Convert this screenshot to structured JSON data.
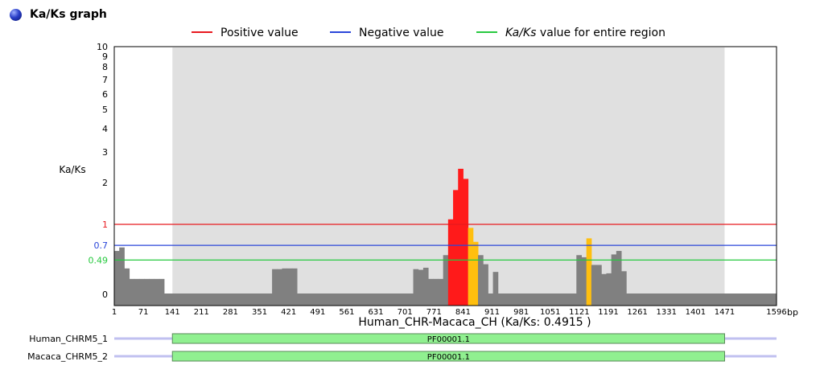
{
  "section": {
    "title": "Ka/Ks graph"
  },
  "colors": {
    "positive": "#e8191f",
    "negative": "#2a46d9",
    "entire": "#27c93f",
    "bar_default": "#808080",
    "bar_high": "#ff1a1a",
    "bar_mid": "#ffbf0f",
    "shade": "#e0e0e0",
    "domain_fill": "#90f090",
    "track": "#c0c0f0"
  },
  "legend": [
    {
      "key": "positive",
      "label_plain": "Positive value",
      "label_italic": ""
    },
    {
      "key": "negative",
      "label_plain": "Negative value",
      "label_italic": ""
    },
    {
      "key": "entire",
      "label_italic": "Ka/Ks",
      "label_plain": " value for entire region"
    }
  ],
  "chart_data": {
    "type": "bar",
    "title": "",
    "ylabel": "Ka/Ks",
    "xlabel": "Human_CHR-Macaca_CH (Ka/Ks: 0.4915 )",
    "x_unit": "bp",
    "x_range": [
      1,
      1596
    ],
    "ylim": [
      0,
      10
    ],
    "y_ticks": [
      {
        "label": "0",
        "value": 0.0
      },
      {
        "label": "1",
        "value": 1.0
      },
      {
        "label": "2",
        "value": 2.0
      },
      {
        "label": "3",
        "value": 3.0
      },
      {
        "label": "4",
        "value": 4.0
      },
      {
        "label": "5",
        "value": 5.0
      },
      {
        "label": "6",
        "value": 6.0
      },
      {
        "label": "7",
        "value": 7.0
      },
      {
        "label": "8",
        "value": 8.0
      },
      {
        "label": "9",
        "value": 9.0
      },
      {
        "label": "10",
        "value": 10.0
      }
    ],
    "x_ticks": [
      "1",
      "71",
      "141",
      "211",
      "281",
      "351",
      "421",
      "491",
      "561",
      "631",
      "701",
      "771",
      "841",
      "911",
      "981",
      "1051",
      "1121",
      "1191",
      "1261",
      "1331",
      "1401",
      "1471",
      "1596"
    ],
    "reference_lines": [
      {
        "key": "positive",
        "value": 1.0,
        "label": "1"
      },
      {
        "key": "negative",
        "value": 0.7,
        "label": "0.7"
      },
      {
        "key": "entire",
        "value": 0.49,
        "label": "0.49"
      }
    ],
    "shaded_region": {
      "start": 141,
      "end": 1471
    },
    "window_size": 12,
    "series": [
      {
        "values": [
          0.01,
          0.01,
          0.62,
          0.62,
          0.67,
          0.67,
          0.37,
          0.37,
          0.22,
          0.22,
          0.22,
          0.22,
          0.22,
          0.22,
          0.22,
          0.22,
          0.01,
          0.01,
          0.01,
          0.01,
          0.01,
          0.01,
          0.01,
          0.01,
          0.01,
          0.01,
          0.01,
          0.01,
          0.01,
          0.01,
          0.01,
          0.01,
          0.01,
          0.01,
          0.01,
          0.01,
          0.01,
          0.01,
          0.01,
          0.01,
          0.01,
          0.01,
          0.01,
          0.01,
          0.01,
          0.01,
          0.01,
          0.01,
          0.01,
          0.01,
          0.01,
          0.01,
          0.01,
          0.01,
          0.01,
          0.01,
          0.01,
          0.01,
          0.01,
          0.01,
          0.01,
          0.01,
          0.01,
          0.01,
          0.01,
          0.01,
          0.01,
          0.01,
          0.01,
          0.01,
          0.01,
          0.01,
          0.01,
          0.01,
          0.01,
          0.01,
          0.01,
          0.01,
          0.01,
          0.01,
          0.01,
          0.01,
          0.01,
          0.01,
          0.01,
          0.01,
          0.01,
          0.01,
          0.01,
          0.01,
          0.01,
          0.01,
          0.01,
          0.01,
          0.01,
          0.01,
          0.01,
          0.01,
          0.01,
          0.01,
          0.01,
          0.01,
          0.01,
          0.01,
          0.01,
          0.01,
          0.01,
          0.01,
          0.01,
          0.01,
          0.01,
          0.01,
          0.01,
          0.01,
          0.01,
          0.01,
          0.01,
          0.01,
          0.01,
          0.01,
          0.01,
          0.01,
          0.01,
          0.01,
          0.01,
          0.01,
          0.01,
          0.01,
          0.01,
          0.01,
          0.01,
          0.01,
          0.01,
          0.01,
          0.01,
          0.01,
          0.01,
          0.01,
          0.01,
          0.01,
          0.01,
          0.01,
          0.01,
          0.01,
          0.01,
          0.01,
          0.01,
          0.01,
          0.01,
          0.01,
          0.01,
          0.01,
          0.01,
          0.01,
          0.01,
          0.01,
          0.01,
          0.01,
          0.01,
          0.01
        ]
      }
    ],
    "bars": [
      {
        "start": 1,
        "end": 13,
        "value": 0.62,
        "tone": "default"
      },
      {
        "start": 13,
        "end": 25,
        "value": 0.67,
        "tone": "default"
      },
      {
        "start": 25,
        "end": 37,
        "value": 0.37,
        "tone": "default"
      },
      {
        "start": 37,
        "end": 49,
        "value": 0.22,
        "tone": "default"
      },
      {
        "start": 49,
        "end": 61,
        "value": 0.22,
        "tone": "default"
      },
      {
        "start": 61,
        "end": 73,
        "value": 0.22,
        "tone": "default"
      },
      {
        "start": 73,
        "end": 85,
        "value": 0.22,
        "tone": "default"
      },
      {
        "start": 85,
        "end": 97,
        "value": 0.22,
        "tone": "default"
      },
      {
        "start": 97,
        "end": 109,
        "value": 0.22,
        "tone": "default"
      },
      {
        "start": 109,
        "end": 121,
        "value": 0.22,
        "tone": "default"
      },
      {
        "start": 121,
        "end": 133,
        "value": 0.01,
        "tone": "default"
      },
      {
        "start": 133,
        "end": 145,
        "value": 0.01,
        "tone": "default"
      },
      {
        "start": 145,
        "end": 381,
        "value": 0.01,
        "tone": "default"
      },
      {
        "start": 381,
        "end": 393,
        "value": 0.36,
        "tone": "default"
      },
      {
        "start": 393,
        "end": 405,
        "value": 0.36,
        "tone": "default"
      },
      {
        "start": 405,
        "end": 417,
        "value": 0.37,
        "tone": "default"
      },
      {
        "start": 417,
        "end": 429,
        "value": 0.37,
        "tone": "default"
      },
      {
        "start": 429,
        "end": 441,
        "value": 0.37,
        "tone": "default"
      },
      {
        "start": 441,
        "end": 721,
        "value": 0.01,
        "tone": "default"
      },
      {
        "start": 721,
        "end": 733,
        "value": 0.36,
        "tone": "default"
      },
      {
        "start": 733,
        "end": 745,
        "value": 0.35,
        "tone": "default"
      },
      {
        "start": 745,
        "end": 757,
        "value": 0.38,
        "tone": "default"
      },
      {
        "start": 757,
        "end": 769,
        "value": 0.22,
        "tone": "default"
      },
      {
        "start": 769,
        "end": 781,
        "value": 0.22,
        "tone": "default"
      },
      {
        "start": 781,
        "end": 793,
        "value": 0.22,
        "tone": "default"
      },
      {
        "start": 793,
        "end": 805,
        "value": 0.56,
        "tone": "default"
      },
      {
        "start": 805,
        "end": 817,
        "value": 1.12,
        "tone": "high"
      },
      {
        "start": 817,
        "end": 829,
        "value": 1.82,
        "tone": "high"
      },
      {
        "start": 829,
        "end": 841,
        "value": 2.45,
        "tone": "high"
      },
      {
        "start": 841,
        "end": 853,
        "value": 2.12,
        "tone": "high"
      },
      {
        "start": 853,
        "end": 865,
        "value": 0.95,
        "tone": "mid"
      },
      {
        "start": 865,
        "end": 877,
        "value": 0.75,
        "tone": "mid"
      },
      {
        "start": 877,
        "end": 889,
        "value": 0.56,
        "tone": "default"
      },
      {
        "start": 889,
        "end": 901,
        "value": 0.43,
        "tone": "default"
      },
      {
        "start": 901,
        "end": 913,
        "value": 0.01,
        "tone": "default"
      },
      {
        "start": 913,
        "end": 925,
        "value": 0.32,
        "tone": "default"
      },
      {
        "start": 925,
        "end": 1114,
        "value": 0.01,
        "tone": "default"
      },
      {
        "start": 1114,
        "end": 1126,
        "value": 0.56,
        "tone": "default"
      },
      {
        "start": 1126,
        "end": 1138,
        "value": 0.53,
        "tone": "default"
      },
      {
        "start": 1138,
        "end": 1150,
        "value": 0.8,
        "tone": "mid"
      },
      {
        "start": 1150,
        "end": 1162,
        "value": 0.42,
        "tone": "default"
      },
      {
        "start": 1162,
        "end": 1174,
        "value": 0.42,
        "tone": "default"
      },
      {
        "start": 1174,
        "end": 1186,
        "value": 0.29,
        "tone": "default"
      },
      {
        "start": 1186,
        "end": 1198,
        "value": 0.3,
        "tone": "default"
      },
      {
        "start": 1198,
        "end": 1210,
        "value": 0.57,
        "tone": "default"
      },
      {
        "start": 1210,
        "end": 1222,
        "value": 0.62,
        "tone": "default"
      },
      {
        "start": 1222,
        "end": 1234,
        "value": 0.33,
        "tone": "default"
      },
      {
        "start": 1234,
        "end": 1596,
        "value": 0.01,
        "tone": "default"
      }
    ]
  },
  "tracks": [
    {
      "name": "Human_CHRM5_1",
      "track_range": [
        1,
        1596
      ],
      "domain": {
        "label": "PF00001.1",
        "start": 141,
        "end": 1471
      }
    },
    {
      "name": "Macaca_CHRM5_2",
      "track_range": [
        1,
        1596
      ],
      "domain": {
        "label": "PF00001.1",
        "start": 141,
        "end": 1471
      }
    }
  ]
}
